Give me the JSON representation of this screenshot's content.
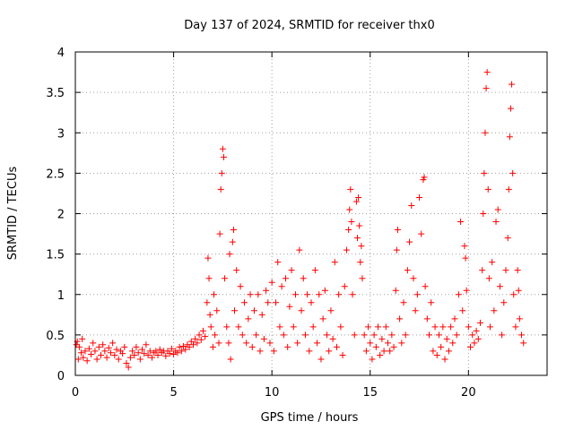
{
  "chart_data": {
    "type": "scatter",
    "title": "Day 137 of 2024, SRMTID for receiver thx0",
    "xlabel": "GPS time / hours",
    "ylabel": "SRMTID / TECUs",
    "xlim": [
      0,
      24
    ],
    "ylim": [
      0,
      4
    ],
    "xticks": [
      0,
      5,
      10,
      15,
      20
    ],
    "yticks": [
      0,
      0.5,
      1,
      1.5,
      2,
      2.5,
      3,
      3.5,
      4
    ],
    "xtick_labels": [
      "0",
      "5",
      "10",
      "15",
      "20"
    ],
    "ytick_labels": [
      "0",
      "0.5",
      "1",
      "1.5",
      "2",
      "2.5",
      "3",
      "3.5",
      "4"
    ],
    "grid": true,
    "marker": "+",
    "color": "#ff0000",
    "series": [
      {
        "name": "SRMTID",
        "points": [
          [
            0.05,
            0.38
          ],
          [
            0.1,
            0.42
          ],
          [
            0.15,
            0.2
          ],
          [
            0.2,
            0.35
          ],
          [
            0.3,
            0.28
          ],
          [
            0.35,
            0.45
          ],
          [
            0.4,
            0.22
          ],
          [
            0.5,
            0.3
          ],
          [
            0.6,
            0.18
          ],
          [
            0.7,
            0.33
          ],
          [
            0.8,
            0.26
          ],
          [
            0.9,
            0.4
          ],
          [
            1.0,
            0.3
          ],
          [
            1.1,
            0.2
          ],
          [
            1.2,
            0.35
          ],
          [
            1.3,
            0.25
          ],
          [
            1.4,
            0.38
          ],
          [
            1.5,
            0.3
          ],
          [
            1.6,
            0.22
          ],
          [
            1.7,
            0.34
          ],
          [
            1.8,
            0.28
          ],
          [
            1.9,
            0.4
          ],
          [
            2.0,
            0.25
          ],
          [
            2.1,
            0.32
          ],
          [
            2.2,
            0.2
          ],
          [
            2.3,
            0.3
          ],
          [
            2.4,
            0.27
          ],
          [
            2.5,
            0.35
          ],
          [
            2.6,
            0.15
          ],
          [
            2.7,
            0.1
          ],
          [
            2.8,
            0.22
          ],
          [
            2.9,
            0.3
          ],
          [
            3.0,
            0.25
          ],
          [
            3.1,
            0.35
          ],
          [
            3.2,
            0.28
          ],
          [
            3.3,
            0.2
          ],
          [
            3.4,
            0.32
          ],
          [
            3.5,
            0.27
          ],
          [
            3.6,
            0.38
          ],
          [
            3.7,
            0.25
          ],
          [
            3.8,
            0.3
          ],
          [
            3.9,
            0.22
          ],
          [
            4.0,
            0.28
          ],
          [
            4.1,
            0.3
          ],
          [
            4.2,
            0.25
          ],
          [
            4.3,
            0.32
          ],
          [
            4.4,
            0.28
          ],
          [
            4.5,
            0.3
          ],
          [
            4.6,
            0.24
          ],
          [
            4.7,
            0.3
          ],
          [
            4.8,
            0.27
          ],
          [
            4.9,
            0.33
          ],
          [
            5.0,
            0.26
          ],
          [
            5.1,
            0.3
          ],
          [
            5.2,
            0.28
          ],
          [
            5.3,
            0.35
          ],
          [
            5.4,
            0.3
          ],
          [
            5.5,
            0.36
          ],
          [
            5.6,
            0.32
          ],
          [
            5.7,
            0.38
          ],
          [
            5.8,
            0.35
          ],
          [
            5.9,
            0.42
          ],
          [
            6.0,
            0.38
          ],
          [
            6.1,
            0.45
          ],
          [
            6.2,
            0.4
          ],
          [
            6.3,
            0.5
          ],
          [
            6.4,
            0.44
          ],
          [
            6.5,
            0.55
          ],
          [
            6.6,
            0.48
          ],
          [
            6.7,
            0.9
          ],
          [
            6.75,
            1.45
          ],
          [
            6.8,
            1.2
          ],
          [
            6.85,
            0.75
          ],
          [
            6.9,
            0.6
          ],
          [
            7.0,
            0.35
          ],
          [
            7.05,
            1.0
          ],
          [
            7.1,
            0.5
          ],
          [
            7.2,
            0.8
          ],
          [
            7.3,
            0.4
          ],
          [
            7.35,
            1.75
          ],
          [
            7.4,
            2.3
          ],
          [
            7.45,
            2.5
          ],
          [
            7.5,
            2.8
          ],
          [
            7.55,
            2.7
          ],
          [
            7.6,
            1.2
          ],
          [
            7.7,
            0.6
          ],
          [
            7.8,
            0.4
          ],
          [
            7.85,
            1.5
          ],
          [
            7.9,
            0.2
          ],
          [
            8.0,
            1.65
          ],
          [
            8.05,
            1.8
          ],
          [
            8.1,
            0.8
          ],
          [
            8.2,
            1.3
          ],
          [
            8.3,
            0.6
          ],
          [
            8.4,
            1.1
          ],
          [
            8.5,
            0.5
          ],
          [
            8.6,
            0.9
          ],
          [
            8.7,
            0.4
          ],
          [
            8.8,
            0.7
          ],
          [
            8.9,
            1.0
          ],
          [
            9.0,
            0.35
          ],
          [
            9.1,
            0.8
          ],
          [
            9.2,
            0.5
          ],
          [
            9.3,
            1.0
          ],
          [
            9.4,
            0.3
          ],
          [
            9.5,
            0.75
          ],
          [
            9.6,
            0.45
          ],
          [
            9.7,
            1.05
          ],
          [
            9.8,
            0.9
          ],
          [
            9.9,
            0.4
          ],
          [
            10.0,
            1.15
          ],
          [
            10.1,
            0.3
          ],
          [
            10.2,
            0.9
          ],
          [
            10.3,
            1.4
          ],
          [
            10.4,
            0.6
          ],
          [
            10.5,
            1.1
          ],
          [
            10.6,
            0.5
          ],
          [
            10.7,
            1.2
          ],
          [
            10.8,
            0.35
          ],
          [
            10.9,
            0.85
          ],
          [
            11.0,
            1.3
          ],
          [
            11.1,
            0.6
          ],
          [
            11.2,
            1.0
          ],
          [
            11.3,
            0.4
          ],
          [
            11.4,
            1.55
          ],
          [
            11.5,
            0.8
          ],
          [
            11.6,
            1.2
          ],
          [
            11.7,
            0.5
          ],
          [
            11.8,
            1.0
          ],
          [
            11.9,
            0.3
          ],
          [
            12.0,
            0.9
          ],
          [
            12.1,
            0.6
          ],
          [
            12.2,
            1.3
          ],
          [
            12.3,
            0.4
          ],
          [
            12.4,
            1.0
          ],
          [
            12.5,
            0.2
          ],
          [
            12.6,
            0.7
          ],
          [
            12.7,
            1.05
          ],
          [
            12.8,
            0.5
          ],
          [
            12.9,
            0.3
          ],
          [
            13.0,
            0.8
          ],
          [
            13.1,
            0.45
          ],
          [
            13.2,
            1.4
          ],
          [
            13.3,
            0.35
          ],
          [
            13.4,
            1.0
          ],
          [
            13.5,
            0.6
          ],
          [
            13.6,
            0.25
          ],
          [
            13.7,
            1.1
          ],
          [
            13.8,
            1.55
          ],
          [
            13.9,
            1.8
          ],
          [
            13.95,
            2.05
          ],
          [
            14.0,
            2.3
          ],
          [
            14.05,
            1.9
          ],
          [
            14.1,
            1.0
          ],
          [
            14.2,
            0.5
          ],
          [
            14.3,
            2.15
          ],
          [
            14.35,
            1.7
          ],
          [
            14.4,
            2.2
          ],
          [
            14.45,
            1.85
          ],
          [
            14.5,
            1.4
          ],
          [
            14.55,
            1.6
          ],
          [
            14.6,
            1.2
          ],
          [
            14.7,
            0.5
          ],
          [
            14.8,
            0.3
          ],
          [
            14.9,
            0.6
          ],
          [
            15.0,
            0.4
          ],
          [
            15.1,
            0.2
          ],
          [
            15.2,
            0.5
          ],
          [
            15.3,
            0.35
          ],
          [
            15.4,
            0.6
          ],
          [
            15.5,
            0.25
          ],
          [
            15.6,
            0.45
          ],
          [
            15.7,
            0.3
          ],
          [
            15.8,
            0.6
          ],
          [
            15.9,
            0.4
          ],
          [
            16.0,
            0.3
          ],
          [
            16.1,
            0.5
          ],
          [
            16.2,
            0.35
          ],
          [
            16.3,
            1.05
          ],
          [
            16.35,
            1.55
          ],
          [
            16.4,
            1.8
          ],
          [
            16.5,
            0.7
          ],
          [
            16.6,
            0.4
          ],
          [
            16.7,
            0.9
          ],
          [
            16.8,
            0.5
          ],
          [
            16.9,
            1.3
          ],
          [
            17.0,
            1.65
          ],
          [
            17.1,
            2.1
          ],
          [
            17.2,
            1.2
          ],
          [
            17.3,
            0.8
          ],
          [
            17.4,
            1.0
          ],
          [
            17.5,
            2.2
          ],
          [
            17.6,
            1.75
          ],
          [
            17.7,
            2.42
          ],
          [
            17.75,
            2.45
          ],
          [
            17.8,
            1.1
          ],
          [
            17.9,
            0.7
          ],
          [
            18.0,
            0.5
          ],
          [
            18.1,
            0.9
          ],
          [
            18.2,
            0.3
          ],
          [
            18.3,
            0.6
          ],
          [
            18.4,
            0.25
          ],
          [
            18.5,
            0.5
          ],
          [
            18.6,
            0.35
          ],
          [
            18.7,
            0.6
          ],
          [
            18.8,
            0.2
          ],
          [
            18.9,
            0.45
          ],
          [
            19.0,
            0.3
          ],
          [
            19.1,
            0.6
          ],
          [
            19.2,
            0.4
          ],
          [
            19.3,
            0.7
          ],
          [
            19.4,
            0.5
          ],
          [
            19.5,
            1.0
          ],
          [
            19.6,
            1.9
          ],
          [
            19.7,
            0.8
          ],
          [
            19.8,
            1.6
          ],
          [
            19.85,
            1.45
          ],
          [
            19.9,
            1.05
          ],
          [
            20.0,
            0.6
          ],
          [
            20.1,
            0.35
          ],
          [
            20.2,
            0.5
          ],
          [
            20.3,
            0.4
          ],
          [
            20.4,
            0.55
          ],
          [
            20.5,
            0.45
          ],
          [
            20.6,
            0.65
          ],
          [
            20.7,
            1.3
          ],
          [
            20.75,
            2.0
          ],
          [
            20.8,
            2.5
          ],
          [
            20.85,
            3.0
          ],
          [
            20.9,
            3.55
          ],
          [
            20.95,
            3.75
          ],
          [
            21.0,
            2.3
          ],
          [
            21.05,
            1.2
          ],
          [
            21.1,
            0.6
          ],
          [
            21.2,
            1.4
          ],
          [
            21.3,
            0.8
          ],
          [
            21.4,
            1.9
          ],
          [
            21.5,
            2.05
          ],
          [
            21.6,
            1.1
          ],
          [
            21.7,
            0.5
          ],
          [
            21.8,
            0.9
          ],
          [
            21.9,
            1.3
          ],
          [
            22.0,
            1.7
          ],
          [
            22.05,
            2.3
          ],
          [
            22.1,
            2.95
          ],
          [
            22.15,
            3.3
          ],
          [
            22.2,
            3.6
          ],
          [
            22.25,
            2.5
          ],
          [
            22.3,
            1.0
          ],
          [
            22.4,
            0.6
          ],
          [
            22.5,
            1.3
          ],
          [
            22.55,
            1.05
          ],
          [
            22.6,
            0.7
          ],
          [
            22.7,
            0.5
          ],
          [
            22.8,
            0.4
          ]
        ]
      }
    ]
  }
}
